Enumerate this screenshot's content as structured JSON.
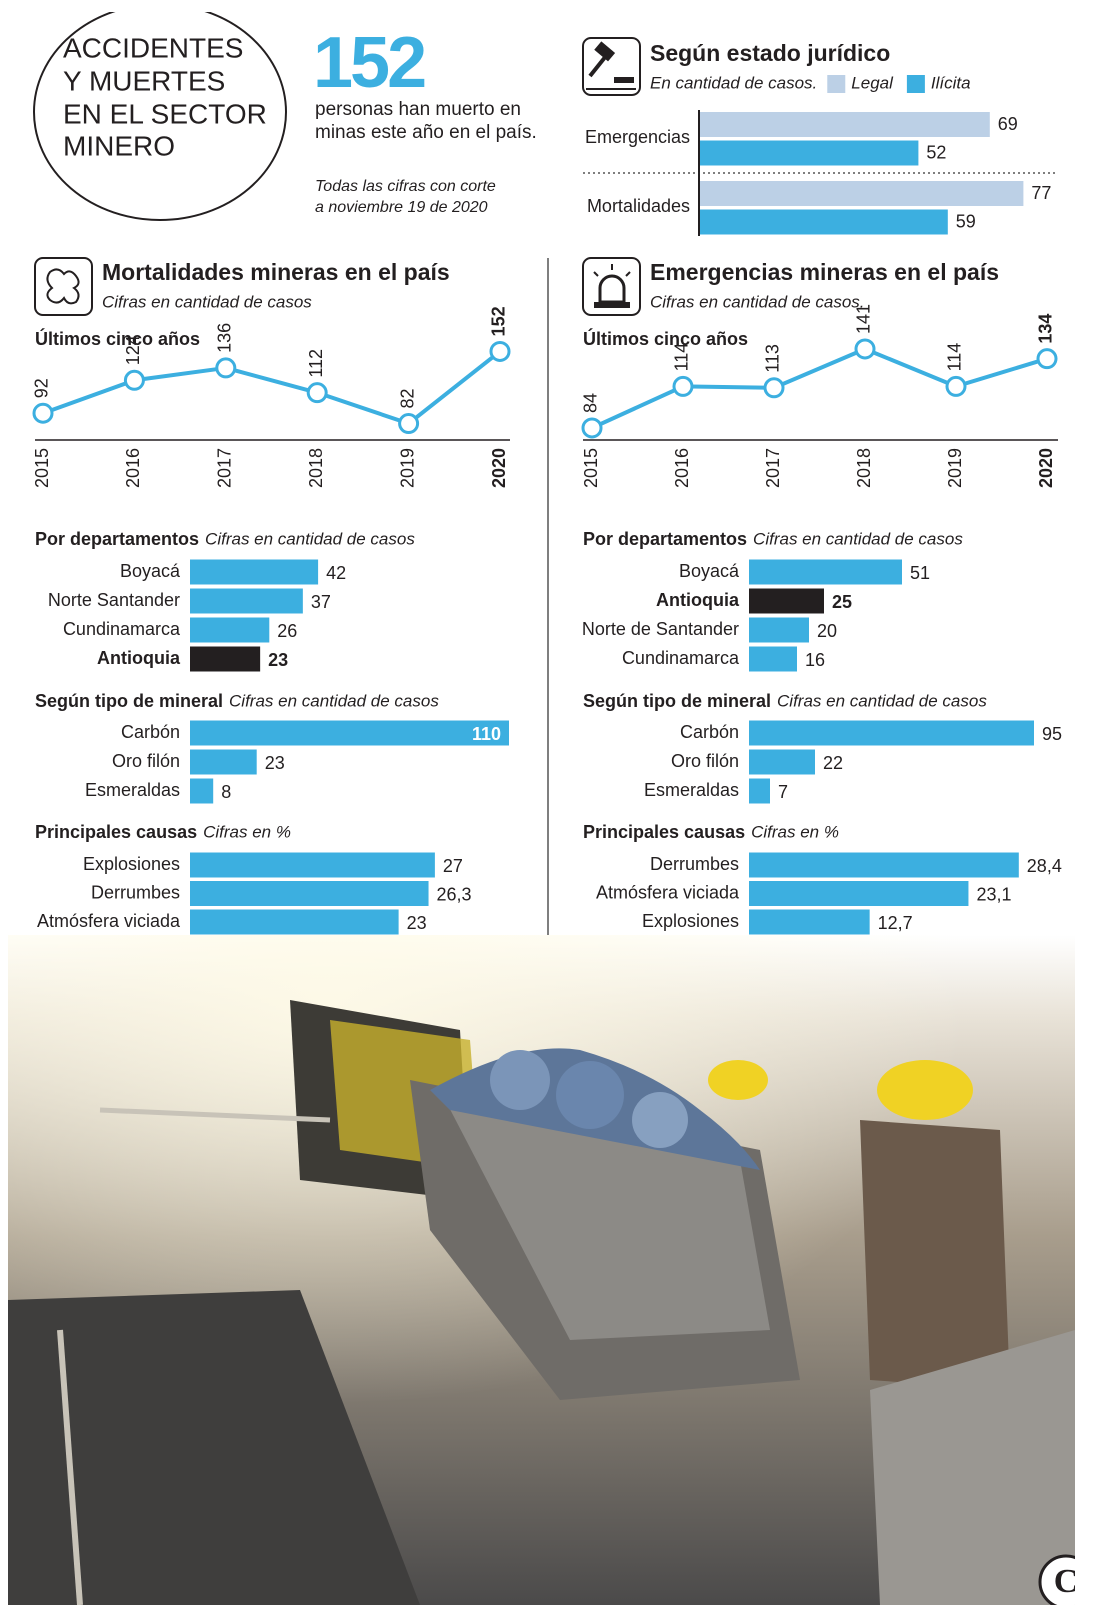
{
  "header": {
    "title_lines": [
      "ACCIDENTES",
      "Y MUERTES",
      "EN EL SECTOR",
      "MINERO"
    ],
    "big_number": 152,
    "lead_lines": [
      "personas han muerto en",
      "minas este año en el país."
    ],
    "note_lines": [
      "Todas las cifras con corte",
      "a noviembre 19 de 2020"
    ]
  },
  "chart_data": [
    {
      "type": "bar",
      "title": "Según estado jurídico",
      "subtitle": "En cantidad de casos.",
      "categories": [
        "Emergencias",
        "Mortalidades"
      ],
      "series": [
        {
          "name": "Legal",
          "color": "#bcd0e6",
          "values": [
            69,
            77
          ]
        },
        {
          "name": "Ilícita",
          "color": "#3cafe0",
          "values": [
            52,
            59
          ]
        }
      ]
    },
    {
      "type": "line",
      "title": "Mortalidades mineras en el país",
      "subtitle": "Cifras en cantidad de casos",
      "label": "Últimos cinco años",
      "color": "#3cafe0",
      "categories": [
        "2015",
        "2016",
        "2017",
        "2018",
        "2019",
        "2020"
      ],
      "values": [
        92,
        124,
        136,
        112,
        82,
        152
      ]
    },
    {
      "type": "line",
      "title": "Emergencias mineras en el país",
      "subtitle": "Cifras en cantidad de casos.",
      "label": "Últimos cinco años",
      "color": "#3cafe0",
      "categories": [
        "2015",
        "2016",
        "2017",
        "2018",
        "2019",
        "2020"
      ],
      "values": [
        84,
        114,
        113,
        141,
        114,
        134
      ]
    },
    {
      "type": "bar",
      "title": "Por departamentos",
      "subtitle": "Cifras en cantidad de casos",
      "categories": [
        "Boyacá",
        "Norte Santander",
        "Cundinamarca",
        "Antioquia"
      ],
      "values": [
        42,
        37,
        26,
        23
      ],
      "colors": [
        "#3cafe0",
        "#3cafe0",
        "#3cafe0",
        "#231f20"
      ]
    },
    {
      "type": "bar",
      "title": "Según tipo de mineral",
      "subtitle": "Cifras en cantidad de casos",
      "categories": [
        "Carbón",
        "Oro filón",
        "Esmeraldas"
      ],
      "values": [
        110,
        23,
        8
      ],
      "colors": [
        "#3cafe0",
        "#3cafe0",
        "#3cafe0"
      ]
    },
    {
      "type": "bar",
      "title": "Principales causas",
      "subtitle": "Cifras en %",
      "categories": [
        "Explosiones",
        "Derrumbes",
        "Atmósfera viciada"
      ],
      "values": [
        27,
        26.3,
        23
      ],
      "value_labels": [
        "27",
        "26,3",
        "23"
      ],
      "colors": [
        "#3cafe0",
        "#3cafe0",
        "#3cafe0"
      ]
    },
    {
      "type": "bar",
      "title": "Por departamentos",
      "subtitle": "Cifras en cantidad de casos",
      "categories": [
        "Boyacá",
        "Antioquia",
        "Norte de Santander",
        "Cundinamarca"
      ],
      "values": [
        51,
        25,
        20,
        16
      ],
      "colors": [
        "#3cafe0",
        "#231f20",
        "#3cafe0",
        "#3cafe0"
      ]
    },
    {
      "type": "bar",
      "title": "Según tipo de mineral",
      "subtitle": "Cifras en cantidad de casos",
      "categories": [
        "Carbón",
        "Oro filón",
        "Esmeraldas"
      ],
      "values": [
        95,
        22,
        7
      ],
      "colors": [
        "#3cafe0",
        "#3cafe0",
        "#3cafe0"
      ]
    },
    {
      "type": "bar",
      "title": "Principales causas",
      "subtitle": "Cifras en %",
      "categories": [
        "Derrumbes",
        "Atmósfera viciada",
        "Explosiones"
      ],
      "values": [
        28.4,
        23.1,
        12.7
      ],
      "value_labels": [
        "28,4",
        "23,1",
        "12,7"
      ],
      "colors": [
        "#3cafe0",
        "#3cafe0",
        "#3cafe0"
      ]
    }
  ]
}
